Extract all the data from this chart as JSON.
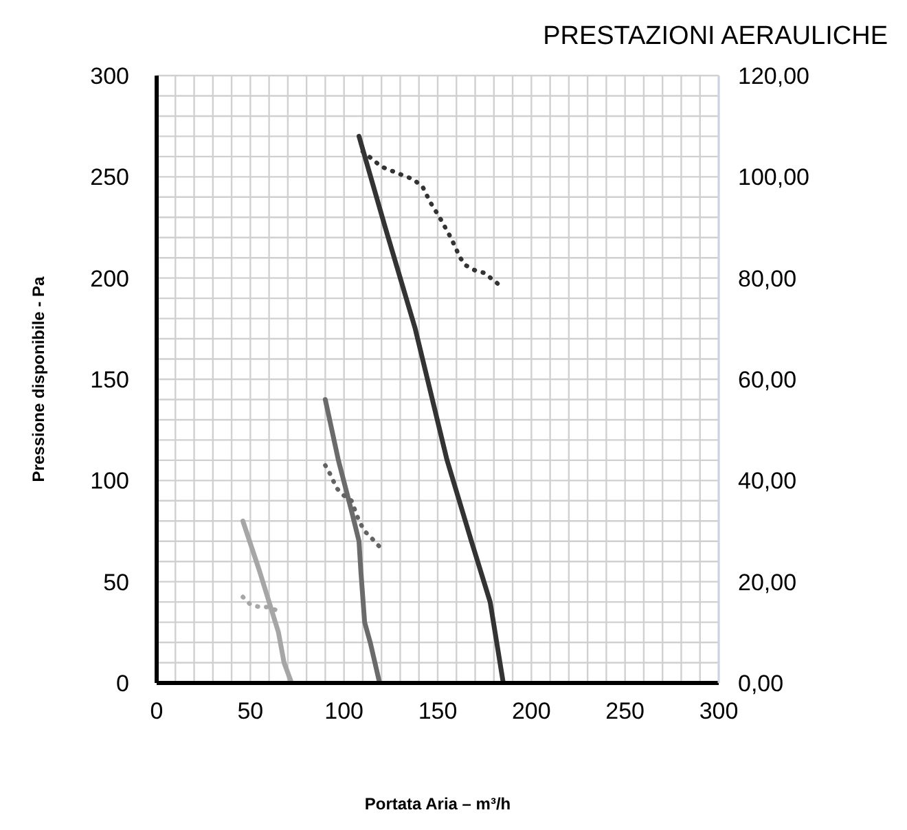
{
  "chart_data": {
    "type": "line",
    "title": "PRESTAZIONI AERAULICHE",
    "xlabel": "Portata Aria – m³/h",
    "ylabel": "Pressione disponibile - Pa",
    "xlim": [
      0,
      300
    ],
    "xticks": [
      0,
      50,
      100,
      150,
      200,
      250,
      300
    ],
    "ylim": [
      0,
      300
    ],
    "yticks": [
      0,
      50,
      100,
      150,
      200,
      250,
      300
    ],
    "y2lim": [
      0,
      120
    ],
    "y2ticks": [
      {
        "value": 0,
        "label": "0,00"
      },
      {
        "value": 20,
        "label": "20,00"
      },
      {
        "value": 40,
        "label": "40,00"
      },
      {
        "value": 60,
        "label": "60,00"
      },
      {
        "value": 80,
        "label": "80,00"
      },
      {
        "value": 100,
        "label": "100,00"
      },
      {
        "value": 120,
        "label": "120,00"
      }
    ],
    "grid": true,
    "legend": false,
    "marker": "none",
    "series": [
      {
        "color": "#a6a6a6",
        "line_style": "solid",
        "x": [
          46,
          55,
          65,
          68,
          72
        ],
        "values": [
          80,
          55,
          25,
          10,
          0
        ]
      },
      {
        "color": "#a6a6a6",
        "line_style": "dotted",
        "axis": "y2",
        "x": [
          46,
          50,
          55,
          60,
          66
        ],
        "values": [
          17,
          15.5,
          15,
          15,
          14
        ]
      },
      {
        "color": "#6b6b6b",
        "line_style": "solid",
        "x": [
          90,
          97,
          104,
          108,
          109,
          111,
          114,
          119
        ],
        "values": [
          140,
          110,
          85,
          70,
          55,
          30,
          20,
          0
        ]
      },
      {
        "color": "#636363",
        "line_style": "dotted",
        "axis": "y2",
        "x": [
          90,
          93,
          96,
          100,
          104,
          106,
          108,
          111,
          115,
          120
        ],
        "values": [
          43,
          41,
          38.5,
          37,
          36,
          34,
          32,
          30,
          28.5,
          26.5
        ]
      },
      {
        "color": "#333333",
        "line_style": "solid",
        "x": [
          108,
          122,
          138,
          155,
          168,
          178,
          185
        ],
        "values": [
          270,
          225,
          175,
          110,
          70,
          40,
          0
        ]
      },
      {
        "color": "#333333",
        "line_style": "dotted",
        "axis": "y2",
        "x": [
          110,
          120,
          130,
          137,
          142,
          146,
          151,
          157,
          162,
          165,
          170,
          175,
          180,
          185
        ],
        "values": [
          105,
          102,
          100.5,
          99.5,
          98,
          95,
          92,
          88,
          84,
          82.5,
          81.5,
          81,
          79.5,
          78
        ]
      }
    ]
  }
}
